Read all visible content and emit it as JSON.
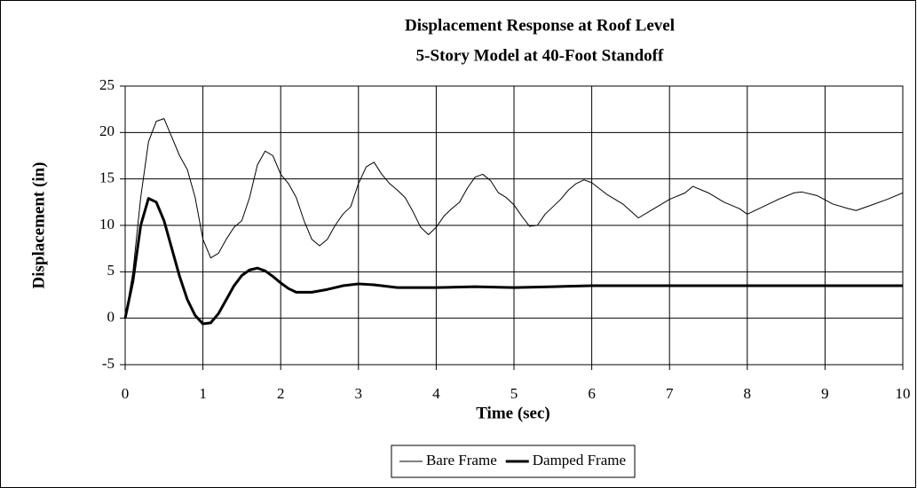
{
  "chart_data": {
    "type": "line",
    "title": "Displacement Response at Roof Level",
    "subtitle": "5-Story Model at 40-Foot Standoff",
    "xlabel": "Time (sec)",
    "ylabel": "Displacement (in)",
    "xlim": [
      0,
      10
    ],
    "xticks": [
      0,
      1,
      2,
      3,
      4,
      5,
      6,
      7,
      8,
      9,
      10
    ],
    "ylim": [
      -5,
      25
    ],
    "yticks": [
      -5,
      0,
      5,
      10,
      15,
      20,
      25
    ],
    "grid": true,
    "legend": "bottom",
    "series": [
      {
        "name": "Bare Frame",
        "color": "#000000",
        "width": 1,
        "x": [
          0,
          0.1,
          0.2,
          0.3,
          0.4,
          0.5,
          0.6,
          0.7,
          0.8,
          0.9,
          1.0,
          1.1,
          1.2,
          1.3,
          1.4,
          1.5,
          1.6,
          1.7,
          1.8,
          1.9,
          2.0,
          2.1,
          2.2,
          2.3,
          2.4,
          2.5,
          2.6,
          2.7,
          2.8,
          2.9,
          3.0,
          3.1,
          3.2,
          3.3,
          3.4,
          3.5,
          3.6,
          3.7,
          3.8,
          3.9,
          4.0,
          4.1,
          4.2,
          4.3,
          4.4,
          4.5,
          4.6,
          4.7,
          4.8,
          4.9,
          5.0,
          5.1,
          5.2,
          5.3,
          5.4,
          5.5,
          5.6,
          5.7,
          5.8,
          5.9,
          6.0,
          6.2,
          6.4,
          6.6,
          6.8,
          7.0,
          7.2,
          7.3,
          7.5,
          7.7,
          7.9,
          8.0,
          8.2,
          8.4,
          8.6,
          8.7,
          8.9,
          9.1,
          9.3,
          9.4,
          9.6,
          9.8,
          10.0
        ],
        "values": [
          0,
          5,
          13,
          19,
          21.2,
          21.5,
          19.5,
          17.5,
          16,
          13,
          8.5,
          6.5,
          7,
          8.5,
          9.8,
          10.5,
          13,
          16.5,
          18,
          17.5,
          15.5,
          14.5,
          13,
          10.5,
          8.5,
          7.8,
          8.5,
          10,
          11.2,
          12,
          14.5,
          16.3,
          16.8,
          15.5,
          14.5,
          13.8,
          13,
          11.5,
          9.8,
          9,
          9.8,
          11,
          11.8,
          12.5,
          14,
          15.2,
          15.5,
          14.8,
          13.5,
          13,
          12.2,
          11,
          9.9,
          10,
          11.2,
          12,
          12.8,
          13.8,
          14.5,
          14.9,
          14.6,
          13.3,
          12.3,
          10.8,
          11.8,
          12.8,
          13.5,
          14.2,
          13.5,
          12.5,
          11.8,
          11.2,
          12,
          12.8,
          13.5,
          13.6,
          13.2,
          12.3,
          11.8,
          11.6,
          12.2,
          12.8,
          13.5
        ]
      },
      {
        "name": "Damped Frame",
        "color": "#000000",
        "width": 3,
        "x": [
          0,
          0.1,
          0.2,
          0.3,
          0.4,
          0.5,
          0.6,
          0.7,
          0.8,
          0.9,
          1.0,
          1.1,
          1.2,
          1.3,
          1.4,
          1.5,
          1.6,
          1.7,
          1.8,
          1.9,
          2.0,
          2.1,
          2.2,
          2.4,
          2.6,
          2.8,
          3.0,
          3.2,
          3.5,
          4.0,
          4.5,
          5.0,
          5.5,
          6,
          7,
          8,
          9,
          10
        ],
        "values": [
          0,
          4,
          10,
          12.9,
          12.5,
          10.5,
          7.5,
          4.5,
          2,
          0.3,
          -0.6,
          -0.5,
          0.5,
          2,
          3.5,
          4.6,
          5.2,
          5.4,
          5.1,
          4.5,
          3.8,
          3.2,
          2.8,
          2.8,
          3.1,
          3.5,
          3.7,
          3.6,
          3.3,
          3.3,
          3.4,
          3.3,
          3.4,
          3.5,
          3.5,
          3.5,
          3.5,
          3.5
        ]
      }
    ]
  }
}
